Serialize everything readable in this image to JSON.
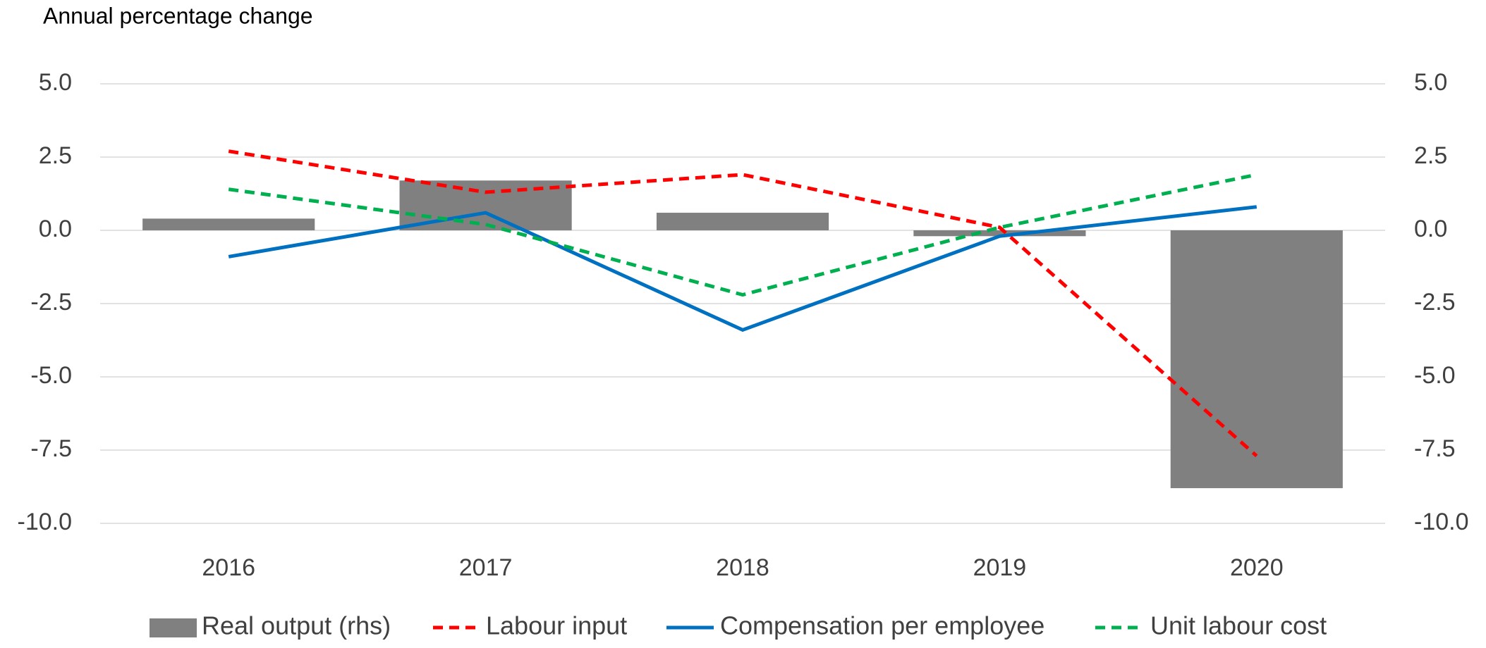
{
  "chart_data": {
    "type": "bar-line",
    "title": "Annual percentage change",
    "categories": [
      "2016",
      "2017",
      "2018",
      "2019",
      "2020"
    ],
    "series": [
      {
        "name": "Real output (rhs)",
        "type": "bar",
        "axis": "y2",
        "color": "#808080",
        "values": [
          0.4,
          1.7,
          0.6,
          -0.2,
          -8.8
        ]
      },
      {
        "name": "Labour input",
        "type": "line",
        "style": "dashed",
        "color": "#ff0000",
        "values": [
          2.7,
          1.3,
          1.9,
          0.1,
          -7.7
        ]
      },
      {
        "name": "Compensation per employee",
        "type": "line",
        "style": "solid",
        "color": "#0070c0",
        "values": [
          -0.9,
          0.6,
          -3.4,
          -0.2,
          0.8
        ]
      },
      {
        "name": "Unit labour cost",
        "type": "line",
        "style": "dashed",
        "color": "#00b050",
        "values": [
          1.4,
          0.2,
          -2.2,
          0.1,
          1.9
        ]
      }
    ],
    "ylim": [
      -10,
      5
    ],
    "yticks": [
      {
        "value": 5,
        "label": "5.0"
      },
      2.5,
      {
        "value": 0,
        "label": "0.0"
      },
      -2.5,
      {
        "value": -5,
        "label": "-5.0"
      },
      -7.5,
      {
        "value": -10,
        "label": "-10.0"
      }
    ],
    "y2lim": [
      -10,
      5
    ],
    "y2ticks": [
      {
        "value": 5,
        "label": "5.0"
      },
      2.5,
      {
        "value": 0,
        "label": "0.0"
      },
      -2.5,
      {
        "value": -5,
        "label": "-5.0"
      },
      -7.5,
      {
        "value": -10,
        "label": "-10.0"
      }
    ],
    "grid": true,
    "legend": "bottom"
  }
}
